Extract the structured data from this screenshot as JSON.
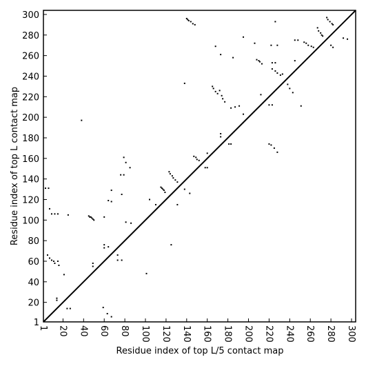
{
  "chart_data": {
    "type": "scatter",
    "x_label": "Residue index of top L/5 contact map",
    "y_label": "Residue index of top L contact map",
    "xlim": [
      1,
      304
    ],
    "ylim": [
      1,
      304
    ],
    "xticks": [
      1,
      20,
      40,
      60,
      80,
      100,
      120,
      140,
      160,
      180,
      200,
      220,
      240,
      260,
      280,
      300
    ],
    "yticks": [
      1,
      20,
      40,
      60,
      80,
      100,
      120,
      140,
      160,
      180,
      200,
      220,
      240,
      260,
      280,
      300
    ],
    "series": [
      {
        "color": "#000000",
        "x": [
          38,
          3,
          6,
          7,
          9,
          12,
          15,
          25,
          45,
          46,
          47,
          48,
          49,
          50,
          60,
          64,
          67,
          67,
          77,
          79,
          81,
          85,
          76,
          79,
          81,
          86,
          104,
          110,
          115,
          116,
          117,
          118,
          119,
          123,
          124,
          126,
          127,
          129,
          131,
          131,
          140,
          141,
          142,
          144,
          146,
          148,
          138,
          147,
          149,
          150,
          152,
          158,
          160,
          165,
          166,
          168,
          170,
          172,
          168,
          173,
          174,
          175,
          177,
          173,
          173,
          181,
          183,
          185,
          195,
          206,
          208,
          210,
          211,
          213,
          212,
          222,
          226,
          228,
          223,
          226,
          223,
          226,
          228,
          231,
          233,
          245,
          245,
          248,
          254,
          256,
          258,
          261,
          263,
          267,
          268,
          270,
          271,
          272,
          276,
          277,
          279,
          281,
          282,
          280,
          282,
          292,
          296,
          5,
          7,
          9,
          11,
          12,
          15,
          16,
          14,
          14,
          21,
          24,
          27,
          49,
          49,
          60,
          60,
          64,
          59,
          63,
          67,
          73,
          73,
          77,
          101,
          125,
          138,
          143,
          160,
          183,
          187,
          191,
          195,
          220,
          223,
          220,
          222,
          225,
          228,
          238,
          240,
          243,
          251
        ],
        "values": [
          197,
          131,
          131,
          111,
          106,
          106,
          106,
          105,
          104,
          103,
          103,
          102,
          101,
          100,
          103,
          119,
          118,
          129,
          125,
          161,
          156,
          151,
          144,
          144,
          98,
          97,
          120,
          115,
          132,
          131,
          130,
          129,
          127,
          147,
          145,
          143,
          141,
          139,
          137,
          115,
          296,
          295,
          294,
          293,
          291,
          290,
          233,
          162,
          161,
          159,
          158,
          151,
          165,
          230,
          228,
          225,
          223,
          226,
          269,
          261,
          221,
          218,
          215,
          184,
          181,
          174,
          174,
          258,
          278,
          272,
          256,
          255,
          254,
          252,
          222,
          270,
          293,
          270,
          253,
          253,
          247,
          245,
          243,
          241,
          242,
          255,
          275,
          275,
          273,
          272,
          270,
          269,
          268,
          287,
          284,
          282,
          280,
          279,
          297,
          295,
          293,
          291,
          290,
          270,
          268,
          277,
          276,
          66,
          63,
          61,
          60,
          58,
          60,
          56,
          24,
          22,
          47,
          14,
          14,
          58,
          55,
          76,
          73,
          74,
          15,
          9,
          6,
          66,
          61,
          61,
          48,
          76,
          130,
          126,
          151,
          209,
          210,
          211,
          203,
          212,
          212,
          174,
          173,
          170,
          166,
          232,
          228,
          224,
          211
        ]
      }
    ]
  }
}
